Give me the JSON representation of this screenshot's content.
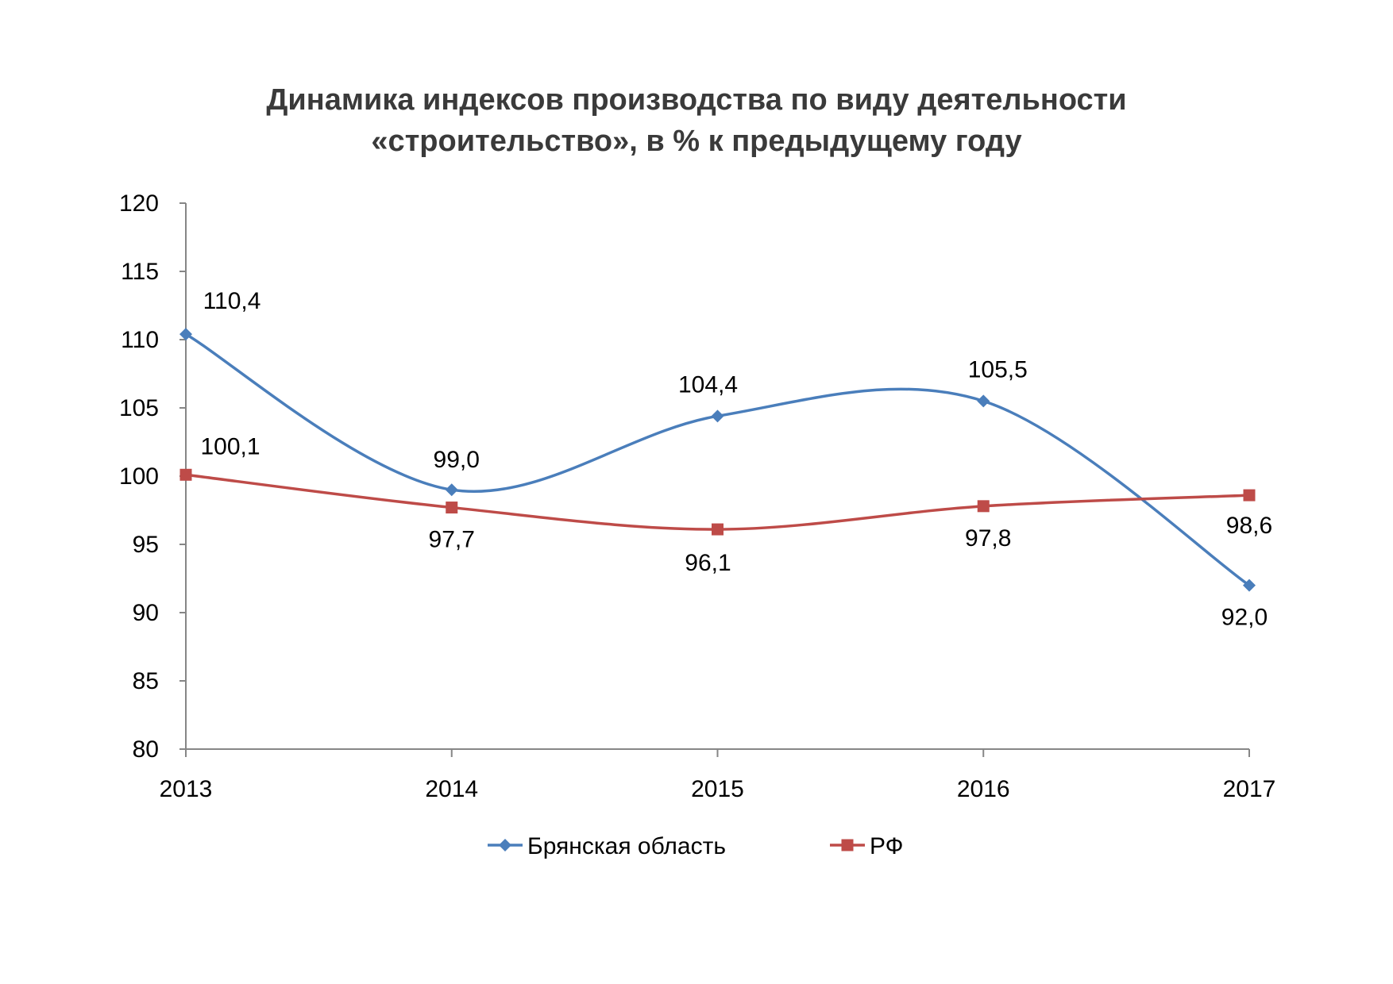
{
  "chart_data": {
    "type": "line",
    "title_line1": "Динамика индексов производства по виду деятельности",
    "title_line2": "«строительство», в % к предыдущему году",
    "categories": [
      "2013",
      "2014",
      "2015",
      "2016",
      "2017"
    ],
    "ylim": [
      80,
      120
    ],
    "yticks": [
      80,
      85,
      90,
      95,
      100,
      105,
      110,
      115,
      120
    ],
    "grid": false,
    "legend_position": "bottom",
    "series": [
      {
        "name": "Брянская область",
        "values": [
          110.4,
          99.0,
          104.4,
          105.5,
          92.0
        ],
        "labels": [
          "110,4",
          "99,0",
          "104,4",
          "105,5",
          "92,0"
        ],
        "color": "#4a7ebb",
        "marker": "diamond"
      },
      {
        "name": "РФ",
        "values": [
          100.1,
          97.7,
          96.1,
          97.8,
          98.6
        ],
        "labels": [
          "100,1",
          "97,7",
          "96,1",
          "97,8",
          "98,6"
        ],
        "color": "#be4b48",
        "marker": "square"
      }
    ]
  }
}
